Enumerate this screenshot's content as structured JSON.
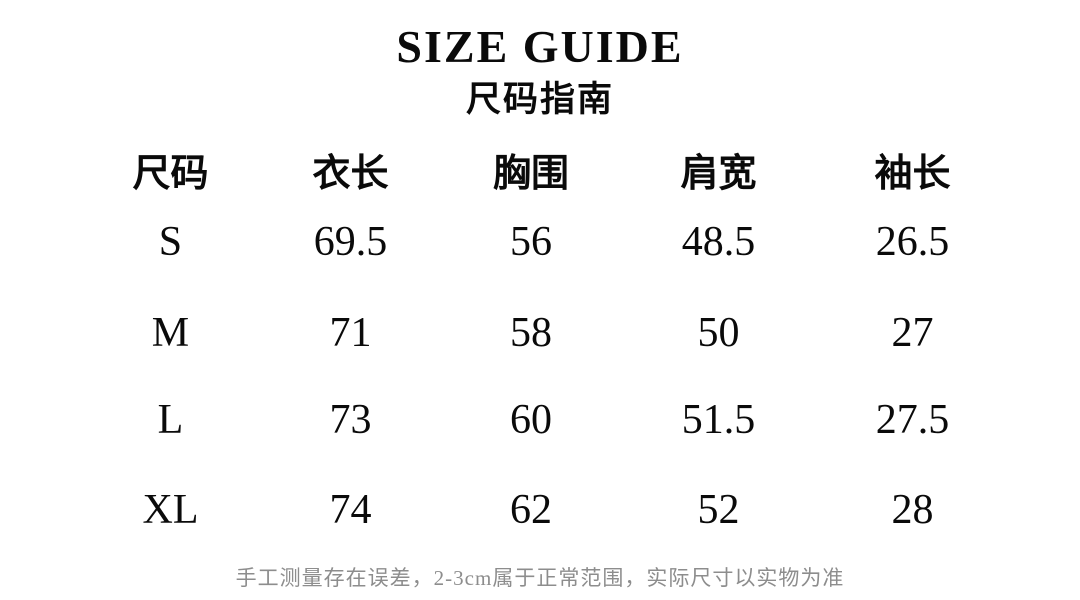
{
  "chart_data": {
    "type": "table",
    "title": "SIZE GUIDE",
    "subtitle": "尺码指南",
    "unit_hint": "cm",
    "columns": [
      "尺码",
      "衣长",
      "胸围",
      "肩宽",
      "袖长"
    ],
    "rows": [
      [
        "S",
        "69.5",
        "56",
        "48.5",
        "26.5"
      ],
      [
        "M",
        "71",
        "58",
        "50",
        "27"
      ],
      [
        "L",
        "73",
        "60",
        "51.5",
        "27.5"
      ],
      [
        "XL",
        "74",
        "62",
        "52",
        "28"
      ]
    ],
    "note": "手工测量存在误差，2-3cm属于正常范围，实际尺寸以实物为准"
  },
  "colors": {
    "text": "#0a0a0a",
    "note": "#8d8d8d",
    "background": "#ffffff"
  }
}
